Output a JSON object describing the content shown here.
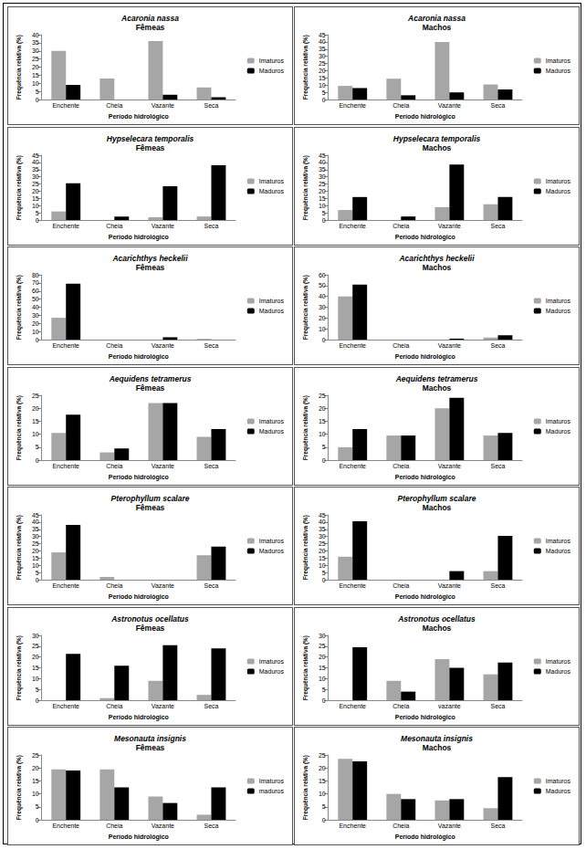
{
  "chart_data": [
    {
      "type": "bar",
      "title": "Acaronia nassa",
      "subtitle": "Fêmeas",
      "x_label": "Período hidrológico",
      "y_label": "Frequência relativa (%)",
      "categories": [
        "Enchente",
        "Cheia",
        "Vazante",
        "Seca"
      ],
      "series": [
        {
          "name": "Imaturos",
          "color": "#a6a6a6",
          "values": [
            30,
            13,
            36,
            7.5
          ]
        },
        {
          "name": "Maduros",
          "color": "#000000",
          "values": [
            9,
            0,
            3,
            1.5
          ]
        }
      ],
      "ylim": [
        0,
        40
      ],
      "yticks": [
        0,
        5,
        10,
        15,
        20,
        25,
        30,
        35,
        40
      ],
      "grid": false,
      "legend": "right"
    },
    {
      "type": "bar",
      "title": "Acaronia nassa",
      "subtitle": "Machos",
      "x_label": "Período hidrológico",
      "y_label": "Frequência relativa (%)",
      "categories": [
        "Enchente",
        "Cheia",
        "Vazante",
        "Seca"
      ],
      "series": [
        {
          "name": "Imaturos",
          "color": "#a6a6a6",
          "values": [
            9.5,
            14.5,
            40,
            10.5
          ]
        },
        {
          "name": "Maduros",
          "color": "#000000",
          "values": [
            8,
            3,
            5,
            7
          ]
        }
      ],
      "ylim": [
        0,
        45
      ],
      "yticks": [
        0,
        5,
        10,
        15,
        20,
        25,
        30,
        35,
        40,
        45
      ],
      "grid": false,
      "legend": "right"
    },
    {
      "type": "bar",
      "title": "Hypselecara temporalis",
      "subtitle": "Fêmeas",
      "x_label": "Período hidrológico",
      "y_label": "Frequência relativa (%)",
      "categories": [
        "Enchente",
        "Cheia",
        "Vazante",
        "Seca"
      ],
      "series": [
        {
          "name": "Imaturos",
          "color": "#a6a6a6",
          "values": [
            6,
            0,
            2,
            2.5
          ]
        },
        {
          "name": "Maduros",
          "color": "#000000",
          "values": [
            25.5,
            2.5,
            23.5,
            38
          ]
        }
      ],
      "ylim": [
        0,
        45
      ],
      "yticks": [
        0,
        5,
        10,
        15,
        20,
        25,
        30,
        35,
        40,
        45
      ],
      "grid": false,
      "legend": "right"
    },
    {
      "type": "bar",
      "title": "Hypselecara temporalis",
      "subtitle": "Machos",
      "x_label": "Período hidrológico",
      "y_label": "Frequência relativa (%)",
      "categories": [
        "Enchente",
        "Cheia",
        "Vazante",
        "Seca"
      ],
      "series": [
        {
          "name": "Imaturos",
          "color": "#a6a6a6",
          "values": [
            7,
            0,
            9,
            11
          ]
        },
        {
          "name": "Maduros",
          "color": "#000000",
          "values": [
            16,
            2.5,
            38.5,
            16
          ]
        }
      ],
      "ylim": [
        0,
        45
      ],
      "yticks": [
        0,
        5,
        10,
        15,
        20,
        25,
        30,
        35,
        40,
        45
      ],
      "grid": false,
      "legend": "right"
    },
    {
      "type": "bar",
      "title": "Acarichthys heckelii",
      "subtitle": "Fêmeas",
      "x_label": "Período hidrológico",
      "y_label": "Frequência relativa (%)",
      "categories": [
        "Enchente",
        "Cheia",
        "Vazante",
        "Seca"
      ],
      "series": [
        {
          "name": "Imaturos",
          "color": "#a6a6a6",
          "values": [
            27,
            0,
            0,
            1
          ]
        },
        {
          "name": "Maduros",
          "color": "#000000",
          "values": [
            69,
            0,
            3,
            0
          ]
        }
      ],
      "ylim": [
        0,
        80
      ],
      "yticks": [
        0,
        10,
        20,
        30,
        40,
        50,
        60,
        70,
        80
      ],
      "grid": false,
      "legend": "right"
    },
    {
      "type": "bar",
      "title": "Acarichthys heckelii",
      "subtitle": "Machos",
      "x_label": "Período hidrológico",
      "y_label": "Frequência relativa (%)",
      "categories": [
        "Enchente",
        "Cheia",
        "Vazante",
        "Seca"
      ],
      "series": [
        {
          "name": "Imaturos",
          "color": "#a6a6a6",
          "values": [
            40,
            0,
            0,
            2
          ]
        },
        {
          "name": "Maduros",
          "color": "#000000",
          "values": [
            51,
            0,
            1,
            4
          ]
        }
      ],
      "ylim": [
        0,
        60
      ],
      "yticks": [
        0,
        10,
        20,
        30,
        40,
        50,
        60
      ],
      "grid": false,
      "legend": "right"
    },
    {
      "type": "bar",
      "title": "Aequidens tetramerus",
      "subtitle": "Fêmeas",
      "x_label": "Período hidrológico",
      "y_label": "Frequência relativa (%)",
      "categories": [
        "Enchente",
        "Cheia",
        "Vazante",
        "Seca"
      ],
      "series": [
        {
          "name": "Imaturos",
          "color": "#a6a6a6",
          "values": [
            10.5,
            3,
            22,
            9
          ]
        },
        {
          "name": "Maduros",
          "color": "#000000",
          "values": [
            17.5,
            4.5,
            22,
            12
          ]
        }
      ],
      "ylim": [
        0,
        25
      ],
      "yticks": [
        0,
        5,
        10,
        15,
        20,
        25
      ],
      "grid": false,
      "legend": "right"
    },
    {
      "type": "bar",
      "title": "Aequidens tetramerus",
      "subtitle": "Machos",
      "x_label": "Período hidrológico",
      "y_label": "Frequência relativa (%)",
      "categories": [
        "Enchente",
        "Cheia",
        "Vazante",
        "Seca"
      ],
      "series": [
        {
          "name": "Imaturos",
          "color": "#a6a6a6",
          "values": [
            5,
            9.5,
            20,
            9.5
          ]
        },
        {
          "name": "Maduros",
          "color": "#000000",
          "values": [
            12,
            9.5,
            24,
            10.5
          ]
        }
      ],
      "ylim": [
        0,
        25
      ],
      "yticks": [
        0,
        5,
        10,
        15,
        20,
        25
      ],
      "grid": false,
      "legend": "right"
    },
    {
      "type": "bar",
      "title": "Pterophyllum scalare",
      "subtitle": "Fêmeas",
      "x_label": "Período hidrológico",
      "y_label": "Frequência relativa (%)",
      "categories": [
        "Enchente",
        "Cheia",
        "Vazante",
        "Seca"
      ],
      "series": [
        {
          "name": "Imaturos",
          "color": "#a6a6a6",
          "values": [
            19,
            2,
            0,
            17
          ]
        },
        {
          "name": "Maduros",
          "color": "#000000",
          "values": [
            38,
            0,
            0,
            23
          ]
        }
      ],
      "ylim": [
        0,
        45
      ],
      "yticks": [
        0,
        5,
        10,
        15,
        20,
        25,
        30,
        35,
        40,
        45
      ],
      "grid": false,
      "legend": "right"
    },
    {
      "type": "bar",
      "title": "Pterophyllum scalare",
      "subtitle": "Machos",
      "x_label": "Período hidrológico",
      "y_label": "Frequência relativa (%)",
      "categories": [
        "Enchente",
        "Cheia",
        "Vazante",
        "Seca"
      ],
      "series": [
        {
          "name": "Imaturos",
          "color": "#a6a6a6",
          "values": [
            16,
            0,
            0,
            6
          ]
        },
        {
          "name": "Maduros",
          "color": "#000000",
          "values": [
            40.5,
            0,
            6,
            30.5
          ]
        }
      ],
      "ylim": [
        0,
        45
      ],
      "yticks": [
        0,
        5,
        10,
        15,
        20,
        25,
        30,
        35,
        40,
        45
      ],
      "grid": false,
      "legend": "right"
    },
    {
      "type": "bar",
      "title": "Astronotus ocellatus",
      "subtitle": "Fêmeas",
      "x_label": "Período hidrológico",
      "y_label": "Frequência relativa (%)",
      "categories": [
        "Enchente",
        "Cheia",
        "Vazante",
        "Seca"
      ],
      "series": [
        {
          "name": "Imaturos",
          "color": "#a6a6a6",
          "values": [
            0,
            1,
            9,
            2.5
          ]
        },
        {
          "name": "Maduros",
          "color": "#000000",
          "values": [
            21.5,
            16,
            25.5,
            24
          ]
        }
      ],
      "ylim": [
        0,
        30
      ],
      "yticks": [
        0,
        5,
        10,
        15,
        20,
        25,
        30
      ],
      "grid": false,
      "legend": "right"
    },
    {
      "type": "bar",
      "title": "Astronotus ocellatus",
      "subtitle": "Machos",
      "x_label": "Período hidrológico",
      "y_label": "Frequência relativa (%)",
      "categories": [
        "Enchente",
        "Cheia",
        "vazante",
        "Seca"
      ],
      "series": [
        {
          "name": "Imaturos",
          "color": "#a6a6a6",
          "values": [
            0,
            9,
            19,
            12
          ]
        },
        {
          "name": "Maduros",
          "color": "#000000",
          "values": [
            24.5,
            4,
            15,
            17.5
          ]
        }
      ],
      "ylim": [
        0,
        30
      ],
      "yticks": [
        0,
        5,
        10,
        15,
        20,
        25,
        30
      ],
      "grid": false,
      "legend": "right"
    },
    {
      "type": "bar",
      "title": "Mesonauta insignis",
      "subtitle": "Fêmeas",
      "x_label": "Período hidrológico",
      "y_label": "Frequência relativa (%)",
      "categories": [
        "Enchente",
        "Cheia",
        "Vazante",
        "Seca"
      ],
      "series": [
        {
          "name": "Imaturos",
          "color": "#a6a6a6",
          "values": [
            19.5,
            19.5,
            9,
            2
          ]
        },
        {
          "name": "maduros",
          "color": "#000000",
          "values": [
            19,
            12.5,
            6.5,
            12.5
          ]
        }
      ],
      "ylim": [
        0,
        25
      ],
      "yticks": [
        0,
        5,
        10,
        15,
        20,
        25
      ],
      "grid": false,
      "legend": "right"
    },
    {
      "type": "bar",
      "title": "Mesonauta insignis",
      "subtitle": "Machos",
      "x_label": "Período hidrológico",
      "y_label": "Frequência relativa (%)",
      "categories": [
        "Enchente",
        "Cheia",
        "Vazante",
        "Seca"
      ],
      "series": [
        {
          "name": "Imaturos",
          "color": "#a6a6a6",
          "values": [
            23.5,
            10,
            7.5,
            4.5
          ]
        },
        {
          "name": "Maduros",
          "color": "#000000",
          "values": [
            22.5,
            8,
            8,
            16.5
          ]
        }
      ],
      "ylim": [
        0,
        25
      ],
      "yticks": [
        0,
        5,
        10,
        15,
        20,
        25
      ],
      "grid": false,
      "legend": "right"
    }
  ]
}
